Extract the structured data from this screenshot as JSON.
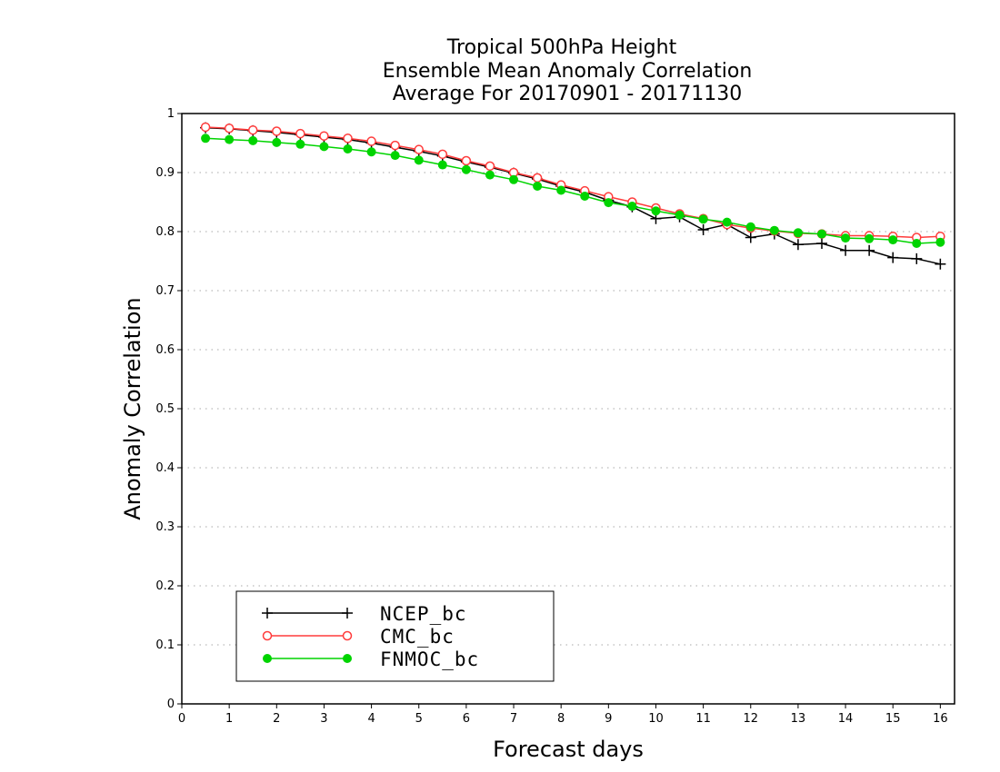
{
  "chart_data": {
    "type": "line",
    "title": [
      "Tropical 500hPa Height",
      "Ensemble Mean Anomaly Correlation",
      "Average For 20170901 - 20171130"
    ],
    "xlabel": "Forecast days",
    "ylabel": "Anomaly Correlation",
    "xlim": [
      0,
      16.3
    ],
    "ylim": [
      0,
      1
    ],
    "xticks": [
      "0",
      "1",
      "2",
      "3",
      "4",
      "5",
      "6",
      "7",
      "8",
      "9",
      "10",
      "11",
      "12",
      "13",
      "14",
      "15",
      "16"
    ],
    "yticks": [
      "0",
      "0.1",
      "0.2",
      "0.3",
      "0.4",
      "0.5",
      "0.6",
      "0.7",
      "0.8",
      "0.9",
      "1"
    ],
    "grid": "horizontal dotted",
    "legend_position": "bottom-left",
    "x": [
      0.5,
      1,
      1.5,
      2,
      2.5,
      3,
      3.5,
      4,
      4.5,
      5,
      5.5,
      6,
      6.5,
      7,
      7.5,
      8,
      8.5,
      9,
      9.5,
      10,
      10.5,
      11,
      11.5,
      12,
      12.5,
      13,
      13.5,
      14,
      14.5,
      15,
      15.5,
      16
    ],
    "series": [
      {
        "name": "NCEP_bc",
        "color": "#000000",
        "marker": "plus",
        "values": [
          0.976,
          0.974,
          0.971,
          0.968,
          0.964,
          0.96,
          0.956,
          0.95,
          0.943,
          0.936,
          0.928,
          0.918,
          0.909,
          0.899,
          0.889,
          0.877,
          0.867,
          0.853,
          0.842,
          0.822,
          0.825,
          0.803,
          0.812,
          0.79,
          0.796,
          0.778,
          0.78,
          0.768,
          0.768,
          0.756,
          0.754,
          0.745
        ]
      },
      {
        "name": "CMC_bc",
        "color": "#ff3b3b",
        "marker": "open-circle",
        "values": [
          0.977,
          0.975,
          0.972,
          0.97,
          0.966,
          0.962,
          0.958,
          0.953,
          0.946,
          0.939,
          0.931,
          0.92,
          0.911,
          0.9,
          0.891,
          0.879,
          0.869,
          0.859,
          0.85,
          0.84,
          0.83,
          0.822,
          0.812,
          0.806,
          0.801,
          0.797,
          0.796,
          0.793,
          0.793,
          0.792,
          0.79,
          0.792
        ]
      },
      {
        "name": "FNMOC_bc",
        "color": "#00d400",
        "marker": "filled-circle",
        "values": [
          0.958,
          0.956,
          0.954,
          0.951,
          0.948,
          0.944,
          0.94,
          0.935,
          0.929,
          0.921,
          0.913,
          0.905,
          0.896,
          0.888,
          0.877,
          0.87,
          0.86,
          0.849,
          0.843,
          0.835,
          0.828,
          0.821,
          0.816,
          0.808,
          0.802,
          0.798,
          0.796,
          0.789,
          0.788,
          0.786,
          0.78,
          0.782
        ]
      }
    ]
  }
}
